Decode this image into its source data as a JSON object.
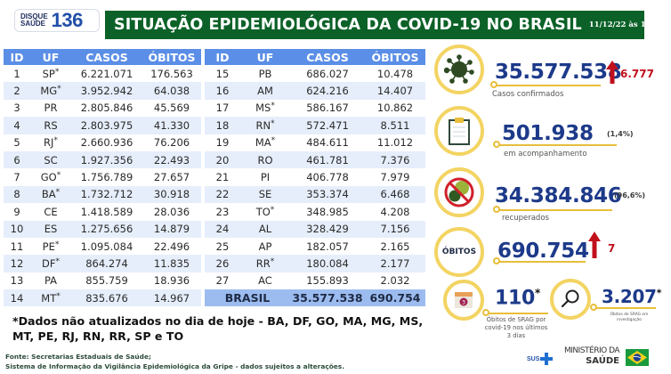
{
  "header": {
    "logo_small_line1": "DISQUE",
    "logo_small_line2": "SAÚDE",
    "logo_number": "136",
    "title": "SITUAÇÃO EPIDEMIOLÓGICA DA COVID-19 NO BRASIL",
    "timestamp": "11/12/22 às 16:35"
  },
  "table": {
    "columns": [
      "ID",
      "UF",
      "CASOS",
      "ÓBITOS"
    ],
    "rows_left": [
      {
        "id": "1",
        "uf": "SP",
        "star": "*",
        "casos": "6.221.071",
        "obitos": "176.563"
      },
      {
        "id": "2",
        "uf": "MG",
        "star": "*",
        "casos": "3.952.942",
        "obitos": "64.038"
      },
      {
        "id": "3",
        "uf": "PR",
        "star": "",
        "casos": "2.805.846",
        "obitos": "45.569"
      },
      {
        "id": "4",
        "uf": "RS",
        "star": "",
        "casos": "2.803.975",
        "obitos": "41.330"
      },
      {
        "id": "5",
        "uf": "RJ",
        "star": "*",
        "casos": "2.660.936",
        "obitos": "76.206"
      },
      {
        "id": "6",
        "uf": "SC",
        "star": "",
        "casos": "1.927.356",
        "obitos": "22.493"
      },
      {
        "id": "7",
        "uf": "GO",
        "star": "*",
        "casos": "1.756.789",
        "obitos": "27.657"
      },
      {
        "id": "8",
        "uf": "BA",
        "star": "*",
        "casos": "1.732.712",
        "obitos": "30.918"
      },
      {
        "id": "9",
        "uf": "CE",
        "star": "",
        "casos": "1.418.589",
        "obitos": "28.036"
      },
      {
        "id": "10",
        "uf": "ES",
        "star": "",
        "casos": "1.275.656",
        "obitos": "14.879"
      },
      {
        "id": "11",
        "uf": "PE",
        "star": "*",
        "casos": "1.095.084",
        "obitos": "22.496"
      },
      {
        "id": "12",
        "uf": "DF",
        "star": "*",
        "casos": "864.274",
        "obitos": "11.835"
      },
      {
        "id": "13",
        "uf": "PA",
        "star": "",
        "casos": "855.759",
        "obitos": "18.936"
      },
      {
        "id": "14",
        "uf": "MT",
        "star": "*",
        "casos": "835.676",
        "obitos": "14.967"
      }
    ],
    "rows_right": [
      {
        "id": "15",
        "uf": "PB",
        "star": "",
        "casos": "686.027",
        "obitos": "10.478"
      },
      {
        "id": "16",
        "uf": "AM",
        "star": "",
        "casos": "624.216",
        "obitos": "14.407"
      },
      {
        "id": "17",
        "uf": "MS",
        "star": "*",
        "casos": "586.167",
        "obitos": "10.862"
      },
      {
        "id": "18",
        "uf": "RN",
        "star": "*",
        "casos": "572.471",
        "obitos": "8.511"
      },
      {
        "id": "19",
        "uf": "MA",
        "star": "*",
        "casos": "484.611",
        "obitos": "11.012"
      },
      {
        "id": "20",
        "uf": "RO",
        "star": "",
        "casos": "461.781",
        "obitos": "7.376"
      },
      {
        "id": "21",
        "uf": "PI",
        "star": "",
        "casos": "406.778",
        "obitos": "7.979"
      },
      {
        "id": "22",
        "uf": "SE",
        "star": "",
        "casos": "353.374",
        "obitos": "6.468"
      },
      {
        "id": "23",
        "uf": "TO",
        "star": "*",
        "casos": "348.985",
        "obitos": "4.208"
      },
      {
        "id": "24",
        "uf": "AL",
        "star": "",
        "casos": "328.429",
        "obitos": "7.156"
      },
      {
        "id": "25",
        "uf": "AP",
        "star": "",
        "casos": "182.057",
        "obitos": "2.165"
      },
      {
        "id": "26",
        "uf": "RR",
        "star": "*",
        "casos": "180.084",
        "obitos": "2.177"
      },
      {
        "id": "27",
        "uf": "AC",
        "star": "",
        "casos": "155.893",
        "obitos": "2.032"
      }
    ],
    "total": {
      "label": "BRASIL",
      "casos": "35.577.538",
      "obitos": "690.754"
    }
  },
  "note": "*Dados não atualizados no dia de hoje - BA, DF, GO, MA, MG, MS, MT, PE, RJ, RN, RR, SP e TO",
  "source": {
    "line1": "Fonte: Secretarias Estaduais de Saúde;",
    "line2": "Sistema de Informação da Vigilância Epidemiológica da Gripe - dados sujeitos a alterações."
  },
  "stats": {
    "confirmed": {
      "icon": "virus-icon",
      "value": "35.577.538",
      "delta": "6.777",
      "label": "Casos confirmados"
    },
    "monitoring": {
      "icon": "clipboard-icon",
      "value": "501.938",
      "pct": "(1,4%)",
      "label": "em acompanhamento"
    },
    "recovered": {
      "icon": "no-virus-icon",
      "value": "34.384.846",
      "pct": "(96,6%)",
      "label": "recuperados"
    },
    "deaths": {
      "badge": "ÓBITOS",
      "value": "690.754",
      "delta": "7"
    },
    "srag_recent": {
      "icon": "calendar-icon",
      "calendar_number": "3",
      "value": "110",
      "star": "*",
      "label_lines": [
        "Óbitos de SRAG por",
        "covid-19 nos últimos",
        "3 dias"
      ]
    },
    "srag_investigation": {
      "icon": "magnifier-icon",
      "value": "3.207",
      "star": "*",
      "label_lines": [
        "Óbitos de SRAG em",
        "investigação"
      ]
    }
  },
  "footer": {
    "sus_label": "SUS",
    "ministry_line1": "MINISTÉRIO DA",
    "ministry_line2": "SAÚDE"
  },
  "colors": {
    "banner_green": "#0b6127",
    "table_header_blue": "#5b8ee6",
    "row_alt": "#e6eefb",
    "total_row": "#9cbcf0",
    "number_blue": "#1d3a8a",
    "ring_yellow": "#f3d463",
    "delta_red": "#c0101c"
  }
}
